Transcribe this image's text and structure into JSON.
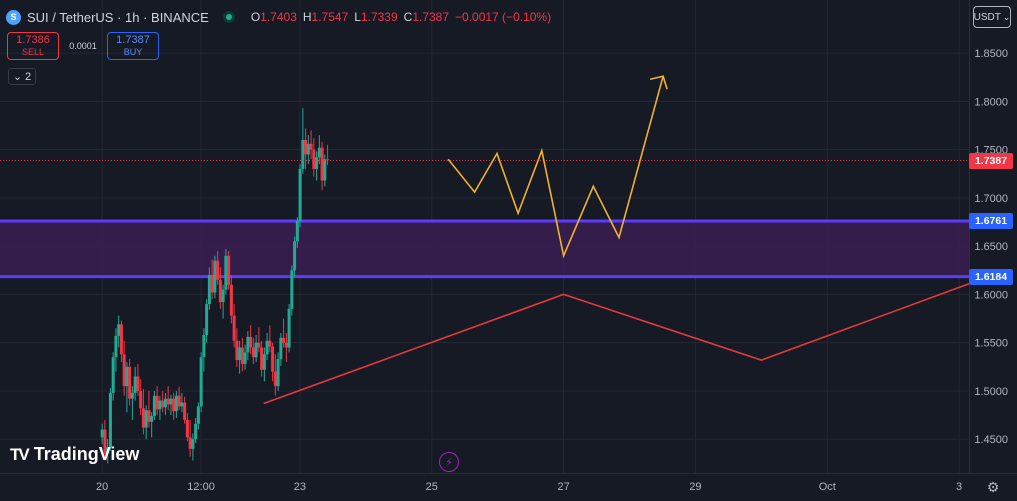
{
  "header": {
    "symbol_icon": "sui-coin-icon",
    "title": "SUI / TetherUS · 1h · BINANCE",
    "ohlc": [
      {
        "k": "O",
        "v": "1.7403"
      },
      {
        "k": "H",
        "v": "1.7547"
      },
      {
        "k": "L",
        "v": "1.7339"
      },
      {
        "k": "C",
        "v": "1.7387"
      }
    ],
    "change": "−0.0017 (−0.10%)"
  },
  "trade_panel": {
    "sell_price": "1.7386",
    "sell_label": "SELL",
    "spread": "0.0001",
    "buy_price": "1.7387",
    "buy_label": "BUY"
  },
  "indicator_toggle": {
    "count": "2",
    "icon": "chevron-down-icon"
  },
  "currency_button": {
    "label": "USDT",
    "icon": "chevron-down-icon"
  },
  "watermark": "TradingView",
  "colors": {
    "background": "#161a25",
    "up": "#22ab94",
    "down": "#f23645",
    "zone_fill": "#3b1f52",
    "zone_line": "#5a3bff",
    "projection": "#f0b12e",
    "trendline": "#e53a3a",
    "last_price": "#f23645",
    "level_label": "#2962ff"
  },
  "chart_data": {
    "type": "candlestick",
    "price_axis": {
      "ticks": [
        "1.8500",
        "1.8000",
        "1.7500",
        "1.7000",
        "1.6500",
        "1.6000",
        "1.5500",
        "1.5000",
        "1.4500"
      ],
      "range": [
        1.415,
        1.905
      ]
    },
    "time_axis": {
      "labels": [
        "20",
        "12:00",
        "23",
        "25",
        "27",
        "29",
        "Oct",
        "3"
      ],
      "positions": [
        20.0,
        21.5,
        23.0,
        25.0,
        27.0,
        29.0,
        31.0,
        33.0
      ]
    },
    "last_price": {
      "value": 1.7387,
      "label": "1.7387"
    },
    "levels": [
      {
        "value": 1.6761,
        "label": "1.6761"
      },
      {
        "value": 1.6184,
        "label": "1.6184"
      }
    ],
    "zone": {
      "top": 1.6761,
      "bottom": 1.6184
    },
    "projection_path": [
      [
        25.25,
        1.74
      ],
      [
        25.65,
        1.706
      ],
      [
        25.99,
        1.746
      ],
      [
        26.31,
        1.684
      ],
      [
        26.67,
        1.749
      ],
      [
        27.0,
        1.64
      ],
      [
        27.45,
        1.712
      ],
      [
        27.84,
        1.659
      ],
      [
        28.51,
        1.826
      ]
    ],
    "trendline": [
      [
        22.45,
        1.487
      ],
      [
        27.0,
        1.6
      ],
      [
        30.0,
        1.532
      ],
      [
        33.15,
        1.611
      ]
    ],
    "candles_summary": "Hourly SUI/USDT candles from 20 to 25, rising from ~1.47 to ~1.74",
    "series": [
      {
        "name": "ohlc",
        "start": 20.0,
        "step": 0.0417,
        "values": [
          [
            1.452,
            1.466,
            1.445,
            1.46
          ],
          [
            1.46,
            1.47,
            1.428,
            1.435
          ],
          [
            1.435,
            1.45,
            1.425,
            1.442
          ],
          [
            1.442,
            1.503,
            1.438,
            1.498
          ],
          [
            1.498,
            1.54,
            1.49,
            1.535
          ],
          [
            1.535,
            1.565,
            1.52,
            1.557
          ],
          [
            1.557,
            1.578,
            1.545,
            1.569
          ],
          [
            1.569,
            1.573,
            1.53,
            1.538
          ],
          [
            1.538,
            1.552,
            1.495,
            1.505
          ],
          [
            1.505,
            1.53,
            1.478,
            1.525
          ],
          [
            1.525,
            1.533,
            1.485,
            1.492
          ],
          [
            1.492,
            1.505,
            1.47,
            1.498
          ],
          [
            1.498,
            1.525,
            1.49,
            1.515
          ],
          [
            1.515,
            1.528,
            1.495,
            1.5
          ],
          [
            1.5,
            1.512,
            1.475,
            1.482
          ],
          [
            1.482,
            1.502,
            1.455,
            1.462
          ],
          [
            1.462,
            1.485,
            1.45,
            1.48
          ],
          [
            1.48,
            1.5,
            1.462,
            1.468
          ],
          [
            1.468,
            1.478,
            1.452,
            1.474
          ],
          [
            1.474,
            1.5,
            1.47,
            1.495
          ],
          [
            1.495,
            1.505,
            1.475,
            1.481
          ],
          [
            1.481,
            1.495,
            1.47,
            1.49
          ],
          [
            1.49,
            1.5,
            1.478,
            1.483
          ],
          [
            1.483,
            1.498,
            1.475,
            1.492
          ],
          [
            1.492,
            1.505,
            1.48,
            1.486
          ],
          [
            1.486,
            1.496,
            1.475,
            1.492
          ],
          [
            1.492,
            1.498,
            1.47,
            1.479
          ],
          [
            1.479,
            1.5,
            1.472,
            1.495
          ],
          [
            1.495,
            1.504,
            1.48,
            1.484
          ],
          [
            1.484,
            1.498,
            1.478,
            1.488
          ],
          [
            1.488,
            1.494,
            1.466,
            1.47
          ],
          [
            1.47,
            1.477,
            1.448,
            1.452
          ],
          [
            1.452,
            1.47,
            1.432,
            1.44
          ],
          [
            1.44,
            1.456,
            1.428,
            1.45
          ],
          [
            1.45,
            1.472,
            1.446,
            1.466
          ],
          [
            1.466,
            1.488,
            1.46,
            1.484
          ],
          [
            1.484,
            1.54,
            1.478,
            1.535
          ],
          [
            1.535,
            1.565,
            1.52,
            1.558
          ],
          [
            1.558,
            1.595,
            1.55,
            1.59
          ],
          [
            1.59,
            1.628,
            1.584,
            1.62
          ],
          [
            1.62,
            1.636,
            1.595,
            1.602
          ],
          [
            1.602,
            1.64,
            1.596,
            1.635
          ],
          [
            1.635,
            1.645,
            1.61,
            1.615
          ],
          [
            1.615,
            1.628,
            1.585,
            1.592
          ],
          [
            1.592,
            1.61,
            1.575,
            1.605
          ],
          [
            1.605,
            1.647,
            1.6,
            1.64
          ],
          [
            1.64,
            1.645,
            1.605,
            1.61
          ],
          [
            1.61,
            1.62,
            1.57,
            1.578
          ],
          [
            1.578,
            1.59,
            1.545,
            1.552
          ],
          [
            1.552,
            1.565,
            1.525,
            1.532
          ],
          [
            1.532,
            1.552,
            1.518,
            1.545
          ],
          [
            1.545,
            1.555,
            1.52,
            1.528
          ],
          [
            1.528,
            1.548,
            1.522,
            1.54
          ],
          [
            1.54,
            1.562,
            1.532,
            1.556
          ],
          [
            1.556,
            1.568,
            1.538,
            1.545
          ],
          [
            1.545,
            1.555,
            1.528,
            1.535
          ],
          [
            1.535,
            1.558,
            1.53,
            1.55
          ],
          [
            1.55,
            1.566,
            1.54,
            1.545
          ],
          [
            1.545,
            1.552,
            1.515,
            1.522
          ],
          [
            1.522,
            1.545,
            1.51,
            1.538
          ],
          [
            1.538,
            1.56,
            1.532,
            1.552
          ],
          [
            1.552,
            1.568,
            1.54,
            1.546
          ],
          [
            1.546,
            1.55,
            1.51,
            1.52
          ],
          [
            1.52,
            1.538,
            1.495,
            1.505
          ],
          [
            1.505,
            1.54,
            1.5,
            1.533
          ],
          [
            1.533,
            1.56,
            1.526,
            1.555
          ],
          [
            1.555,
            1.575,
            1.545,
            1.55
          ],
          [
            1.55,
            1.56,
            1.53,
            1.545
          ],
          [
            1.545,
            1.59,
            1.54,
            1.585
          ],
          [
            1.585,
            1.63,
            1.578,
            1.625
          ],
          [
            1.625,
            1.66,
            1.618,
            1.655
          ],
          [
            1.655,
            1.68,
            1.648,
            1.676
          ],
          [
            1.676,
            1.735,
            1.67,
            1.73
          ],
          [
            1.73,
            1.793,
            1.725,
            1.76
          ],
          [
            1.76,
            1.772,
            1.73,
            1.745
          ],
          [
            1.745,
            1.765,
            1.735,
            1.756
          ],
          [
            1.756,
            1.77,
            1.74,
            1.75
          ],
          [
            1.75,
            1.762,
            1.722,
            1.73
          ],
          [
            1.73,
            1.748,
            1.718,
            1.742
          ],
          [
            1.742,
            1.765,
            1.735,
            1.752
          ],
          [
            1.752,
            1.758,
            1.708,
            1.718
          ],
          [
            1.718,
            1.745,
            1.712,
            1.74
          ],
          [
            1.74,
            1.755,
            1.734,
            1.739
          ]
        ]
      }
    ]
  }
}
